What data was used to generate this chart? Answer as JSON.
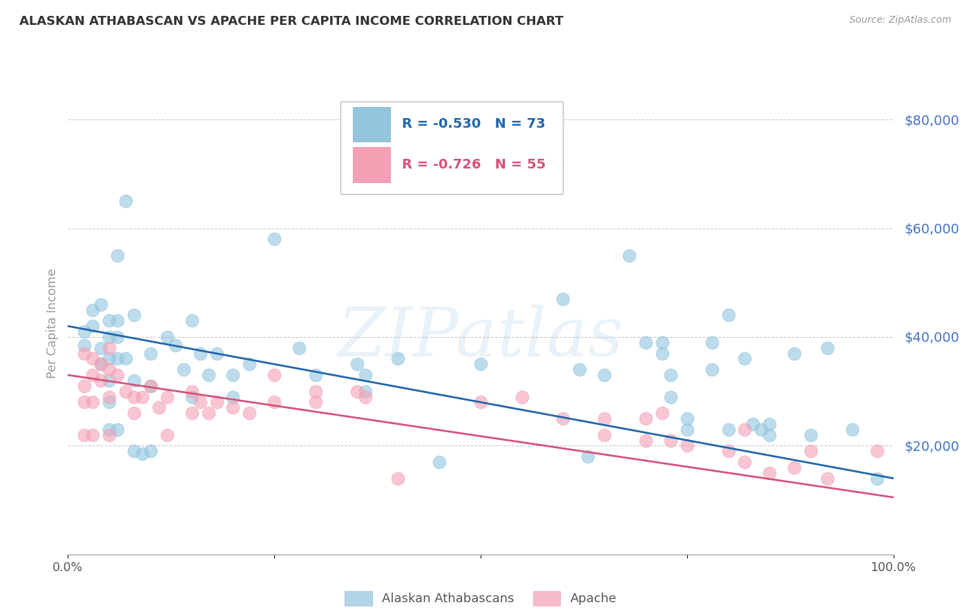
{
  "title": "ALASKAN ATHABASCAN VS APACHE PER CAPITA INCOME CORRELATION CHART",
  "source": "Source: ZipAtlas.com",
  "ylabel": "Per Capita Income",
  "ytick_labels": [
    "$20,000",
    "$40,000",
    "$60,000",
    "$80,000"
  ],
  "ytick_values": [
    20000,
    40000,
    60000,
    80000
  ],
  "ylim": [
    0,
    85000
  ],
  "xlim": [
    0.0,
    1.0
  ],
  "watermark": "ZIPatlas",
  "legend_blue_r": "R = -0.530",
  "legend_blue_n": "N = 73",
  "legend_pink_r": "R = -0.726",
  "legend_pink_n": "N = 55",
  "blue_color": "#92c5de",
  "pink_color": "#f4a0b4",
  "blue_line_color": "#2166ac",
  "pink_line_color": "#d6537a",
  "blue_scatter": [
    [
      0.02,
      41000
    ],
    [
      0.02,
      38500
    ],
    [
      0.03,
      45000
    ],
    [
      0.03,
      42000
    ],
    [
      0.04,
      46000
    ],
    [
      0.04,
      38000
    ],
    [
      0.04,
      35000
    ],
    [
      0.05,
      43000
    ],
    [
      0.05,
      40000
    ],
    [
      0.05,
      36000
    ],
    [
      0.05,
      32000
    ],
    [
      0.05,
      28000
    ],
    [
      0.05,
      23000
    ],
    [
      0.06,
      55000
    ],
    [
      0.06,
      43000
    ],
    [
      0.06,
      40000
    ],
    [
      0.06,
      36000
    ],
    [
      0.06,
      23000
    ],
    [
      0.07,
      65000
    ],
    [
      0.07,
      36000
    ],
    [
      0.08,
      44000
    ],
    [
      0.08,
      32000
    ],
    [
      0.08,
      19000
    ],
    [
      0.09,
      18500
    ],
    [
      0.1,
      37000
    ],
    [
      0.1,
      31000
    ],
    [
      0.1,
      19000
    ],
    [
      0.12,
      40000
    ],
    [
      0.13,
      38500
    ],
    [
      0.14,
      34000
    ],
    [
      0.15,
      43000
    ],
    [
      0.15,
      29000
    ],
    [
      0.16,
      37000
    ],
    [
      0.17,
      33000
    ],
    [
      0.18,
      37000
    ],
    [
      0.2,
      33000
    ],
    [
      0.2,
      29000
    ],
    [
      0.22,
      35000
    ],
    [
      0.25,
      58000
    ],
    [
      0.28,
      38000
    ],
    [
      0.3,
      33000
    ],
    [
      0.35,
      35000
    ],
    [
      0.36,
      33000
    ],
    [
      0.36,
      30000
    ],
    [
      0.4,
      36000
    ],
    [
      0.45,
      17000
    ],
    [
      0.5,
      35000
    ],
    [
      0.6,
      47000
    ],
    [
      0.62,
      34000
    ],
    [
      0.63,
      18000
    ],
    [
      0.65,
      33000
    ],
    [
      0.68,
      55000
    ],
    [
      0.7,
      39000
    ],
    [
      0.72,
      39000
    ],
    [
      0.72,
      37000
    ],
    [
      0.73,
      33000
    ],
    [
      0.73,
      29000
    ],
    [
      0.75,
      25000
    ],
    [
      0.75,
      23000
    ],
    [
      0.78,
      39000
    ],
    [
      0.78,
      34000
    ],
    [
      0.8,
      44000
    ],
    [
      0.8,
      23000
    ],
    [
      0.82,
      36000
    ],
    [
      0.83,
      24000
    ],
    [
      0.84,
      23000
    ],
    [
      0.85,
      24000
    ],
    [
      0.85,
      22000
    ],
    [
      0.88,
      37000
    ],
    [
      0.9,
      22000
    ],
    [
      0.92,
      38000
    ],
    [
      0.95,
      23000
    ],
    [
      0.98,
      14000
    ]
  ],
  "pink_scatter": [
    [
      0.02,
      37000
    ],
    [
      0.02,
      31000
    ],
    [
      0.02,
      28000
    ],
    [
      0.02,
      22000
    ],
    [
      0.03,
      36000
    ],
    [
      0.03,
      33000
    ],
    [
      0.03,
      28000
    ],
    [
      0.03,
      22000
    ],
    [
      0.04,
      35000
    ],
    [
      0.04,
      32000
    ],
    [
      0.05,
      38000
    ],
    [
      0.05,
      34000
    ],
    [
      0.05,
      29000
    ],
    [
      0.05,
      22000
    ],
    [
      0.06,
      33000
    ],
    [
      0.07,
      30000
    ],
    [
      0.08,
      29000
    ],
    [
      0.08,
      26000
    ],
    [
      0.09,
      29000
    ],
    [
      0.1,
      31000
    ],
    [
      0.11,
      27000
    ],
    [
      0.12,
      29000
    ],
    [
      0.12,
      22000
    ],
    [
      0.15,
      30000
    ],
    [
      0.15,
      26000
    ],
    [
      0.16,
      28000
    ],
    [
      0.17,
      26000
    ],
    [
      0.18,
      28000
    ],
    [
      0.2,
      27000
    ],
    [
      0.22,
      26000
    ],
    [
      0.25,
      33000
    ],
    [
      0.25,
      28000
    ],
    [
      0.3,
      30000
    ],
    [
      0.3,
      28000
    ],
    [
      0.35,
      30000
    ],
    [
      0.36,
      29000
    ],
    [
      0.4,
      14000
    ],
    [
      0.5,
      28000
    ],
    [
      0.55,
      29000
    ],
    [
      0.6,
      25000
    ],
    [
      0.65,
      25000
    ],
    [
      0.65,
      22000
    ],
    [
      0.7,
      25000
    ],
    [
      0.7,
      21000
    ],
    [
      0.72,
      26000
    ],
    [
      0.73,
      21000
    ],
    [
      0.75,
      20000
    ],
    [
      0.8,
      19000
    ],
    [
      0.82,
      23000
    ],
    [
      0.82,
      17000
    ],
    [
      0.85,
      15000
    ],
    [
      0.88,
      16000
    ],
    [
      0.9,
      19000
    ],
    [
      0.92,
      14000
    ],
    [
      0.98,
      19000
    ]
  ],
  "blue_trendline": [
    [
      0.0,
      42000
    ],
    [
      1.0,
      14000
    ]
  ],
  "pink_trendline": [
    [
      0.0,
      33000
    ],
    [
      1.0,
      10500
    ]
  ],
  "background_color": "#ffffff",
  "grid_color": "#c8c8c8",
  "title_color": "#333333",
  "axis_color": "#999999",
  "ytick_color": "#4472c4",
  "xtick_color": "#555555"
}
